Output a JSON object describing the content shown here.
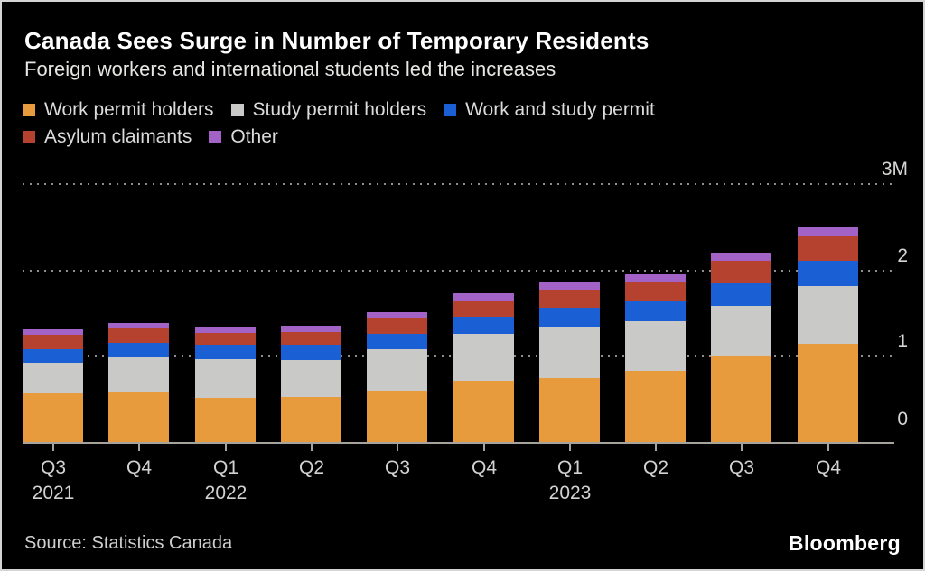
{
  "header": {
    "title": "Canada Sees Surge in Number of Temporary Residents",
    "subtitle": "Foreign workers and international students led the increases"
  },
  "chart_data": {
    "type": "bar",
    "stacked": true,
    "unit": "millions of people",
    "title": "Canada Sees Surge in Number of Temporary Residents",
    "xlabel": "",
    "ylabel": "",
    "ylim": [
      0,
      3
    ],
    "y_axis_side": "right",
    "grid": "horizontal-dotted",
    "legend_position": "top",
    "categories": [
      "Q3 2021",
      "Q4 2021",
      "Q1 2022",
      "Q2 2022",
      "Q3 2022",
      "Q4 2022",
      "Q1 2023",
      "Q2 2023",
      "Q3 2023",
      "Q4 2023"
    ],
    "x_tick_labels": [
      "Q3",
      "Q4",
      "Q1",
      "Q2",
      "Q3",
      "Q4",
      "Q1",
      "Q2",
      "Q3",
      "Q4"
    ],
    "x_year_labels": [
      {
        "index": 0,
        "label": "2021"
      },
      {
        "index": 2,
        "label": "2022"
      },
      {
        "index": 6,
        "label": "2023"
      }
    ],
    "yticks": [
      {
        "value": 3,
        "label": "3M"
      },
      {
        "value": 2,
        "label": "2"
      },
      {
        "value": 1,
        "label": "1"
      },
      {
        "value": 0,
        "label": "0"
      }
    ],
    "series": [
      {
        "name": "Work permit holders",
        "color": "#E89B3C",
        "values": [
          0.57,
          0.58,
          0.52,
          0.53,
          0.61,
          0.72,
          0.75,
          0.84,
          1.0,
          1.15
        ]
      },
      {
        "name": "Study permit holders",
        "color": "#C9C9C7",
        "values": [
          0.36,
          0.41,
          0.45,
          0.43,
          0.48,
          0.54,
          0.59,
          0.57,
          0.59,
          0.67
        ]
      },
      {
        "name": "Work and study permit",
        "color": "#1A5FD3",
        "values": [
          0.16,
          0.17,
          0.16,
          0.18,
          0.18,
          0.2,
          0.23,
          0.23,
          0.26,
          0.29
        ]
      },
      {
        "name": "Asylum claimants",
        "color": "#B5422E",
        "values": [
          0.17,
          0.17,
          0.15,
          0.15,
          0.19,
          0.18,
          0.2,
          0.22,
          0.26,
          0.28
        ]
      },
      {
        "name": "Other",
        "color": "#A262C6",
        "values": [
          0.06,
          0.06,
          0.07,
          0.07,
          0.06,
          0.09,
          0.09,
          0.09,
          0.09,
          0.1
        ]
      }
    ],
    "totals": [
      1.32,
      1.39,
      1.35,
      1.36,
      1.52,
      1.73,
      1.86,
      1.95,
      2.2,
      2.49
    ]
  },
  "footer": {
    "source": "Source: Statistics Canada",
    "brand": "Bloomberg"
  }
}
